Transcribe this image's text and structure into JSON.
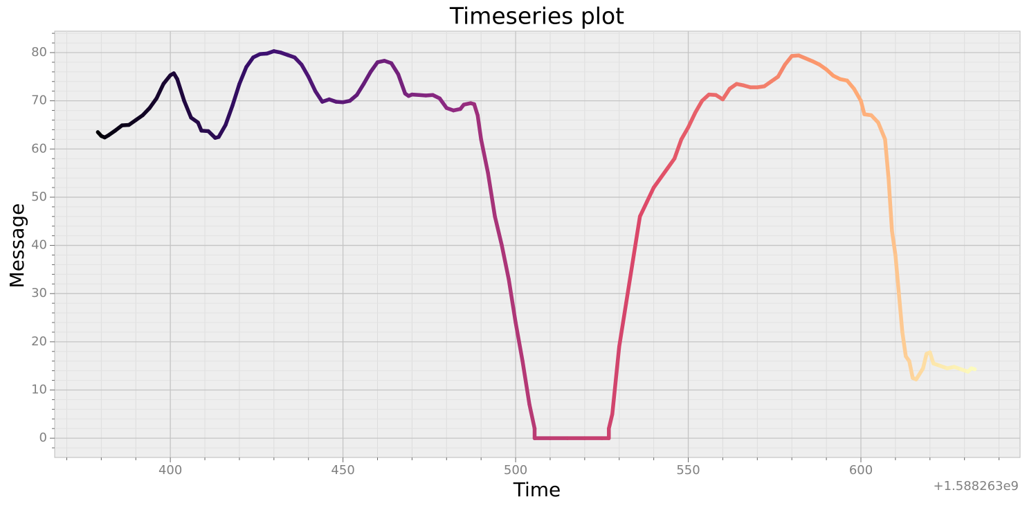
{
  "chart_data": {
    "type": "line",
    "title": "Timeseries plot",
    "xlabel": "Time",
    "ylabel": "Message",
    "offset_label": "+1.588263e9",
    "xlim": [
      366.5,
      646.1
    ],
    "ylim": [
      -4.0,
      84.45
    ],
    "xticks": [
      400,
      450,
      500,
      550,
      600
    ],
    "yticks": [
      0,
      10,
      20,
      30,
      40,
      50,
      60,
      70,
      80
    ],
    "xminorticks": [
      370,
      380,
      390,
      410,
      420,
      430,
      440,
      460,
      470,
      480,
      490,
      510,
      520,
      530,
      540,
      560,
      570,
      580,
      590,
      610,
      620,
      630,
      640
    ],
    "yminorticks": [
      -2,
      2,
      4,
      6,
      8,
      12,
      14,
      16,
      18,
      22,
      24,
      26,
      28,
      32,
      34,
      36,
      38,
      42,
      44,
      46,
      48,
      52,
      54,
      56,
      58,
      62,
      64,
      66,
      68,
      72,
      74,
      76,
      78,
      82,
      84
    ],
    "grid": true,
    "colormap": [
      "#000004",
      "#3b0f70",
      "#8c2981",
      "#de4968",
      "#fe9f6d",
      "#fcfdbf"
    ],
    "x": [
      379,
      380,
      381,
      382,
      384,
      386,
      388,
      390,
      392,
      394,
      396,
      398,
      400,
      401,
      402,
      404,
      406,
      408,
      409,
      411,
      413,
      414,
      416,
      418,
      420,
      422,
      424,
      426,
      428,
      430,
      432,
      434,
      436,
      438,
      440,
      442,
      444,
      446,
      448,
      450,
      452,
      454,
      456,
      458,
      460,
      462,
      464,
      466,
      468,
      469,
      470,
      472,
      474,
      476,
      478,
      480,
      482,
      484,
      485,
      487,
      488,
      489,
      490,
      492,
      494,
      496,
      498,
      500,
      502,
      504,
      505.5,
      505.5,
      510,
      515,
      520,
      525,
      527,
      527,
      528,
      530,
      532,
      534,
      536,
      538,
      540,
      542,
      544,
      546,
      548,
      550,
      552,
      554,
      556,
      558,
      560,
      562,
      564,
      566,
      568,
      570,
      572,
      574,
      576,
      578,
      580,
      582,
      584,
      586,
      588,
      590,
      592,
      594,
      596,
      598,
      600,
      601,
      603,
      605,
      607,
      608,
      609,
      610,
      611,
      612,
      613,
      614,
      615,
      616,
      618,
      619,
      620,
      621,
      623,
      625,
      627,
      629,
      631,
      632,
      633
    ],
    "series": [
      {
        "name": "Message",
        "values": [
          63.5,
          62.7,
          62.4,
          62.8,
          63.8,
          64.9,
          65.0,
          66.0,
          67.0,
          68.5,
          70.5,
          73.5,
          75.3,
          75.7,
          74.5,
          70,
          66.5,
          65.5,
          63.8,
          63.7,
          62.3,
          62.5,
          65,
          69,
          73.5,
          77,
          79,
          79.7,
          79.8,
          80.3,
          80.0,
          79.5,
          79,
          77.5,
          75,
          72,
          69.8,
          70.3,
          69.8,
          69.7,
          70,
          71.2,
          73.5,
          76,
          78,
          78.3,
          77.8,
          75.5,
          71.5,
          71,
          71.3,
          71.2,
          71.1,
          71.2,
          70.5,
          68.5,
          68.0,
          68.3,
          69.2,
          69.5,
          69.3,
          67,
          62,
          55,
          46,
          40,
          33,
          24,
          16,
          7,
          2,
          0,
          0,
          0,
          0,
          0,
          0,
          2,
          5,
          19,
          28,
          37,
          46,
          49,
          52,
          54,
          56,
          58,
          62,
          64.5,
          67.5,
          70,
          71.3,
          71.2,
          70.3,
          72.5,
          73.5,
          73.2,
          72.8,
          72.8,
          73,
          74,
          75,
          77.5,
          79.3,
          79.4,
          78.8,
          78.2,
          77.5,
          76.5,
          75.2,
          74.5,
          74.2,
          72.5,
          70,
          67.2,
          67,
          65.5,
          62,
          54,
          43,
          38,
          30,
          22,
          17,
          16,
          12.5,
          12.2,
          14.5,
          17.5,
          17.8,
          15.5,
          15,
          14.5,
          14.8,
          14.3,
          13.8,
          14.5,
          14.3
        ]
      }
    ]
  }
}
